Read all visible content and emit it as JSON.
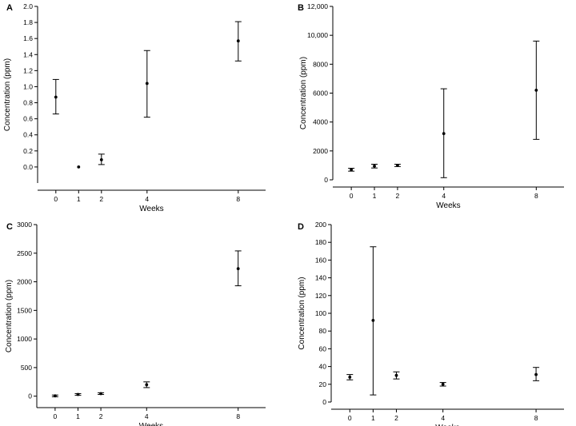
{
  "chart_data": [
    {
      "type": "scatter",
      "panel": "A",
      "xlabel": "Weeks",
      "ylabel": "Concentration (ppm)",
      "x_ticks": [
        0,
        1,
        2,
        4,
        8
      ],
      "y_ticks": [
        0.0,
        0.2,
        0.4,
        0.6,
        0.8,
        1.0,
        1.2,
        1.4,
        1.6,
        1.8,
        2.0
      ],
      "y_tick_labels": [
        "0.0",
        "0.2",
        "0.4",
        "0.6",
        "0.8",
        "1.0",
        "1.2",
        "1.4",
        "1.6",
        "1.8",
        "2.0"
      ],
      "xlim": [
        -0.8,
        9.2
      ],
      "ylim": [
        -0.2,
        2.0
      ],
      "points": [
        {
          "x": 0,
          "y": 0.87,
          "err_low": 0.66,
          "err_high": 1.09
        },
        {
          "x": 1,
          "y": 0.0,
          "err_low": 0.0,
          "err_high": 0.0
        },
        {
          "x": 2,
          "y": 0.09,
          "err_low": 0.03,
          "err_high": 0.16
        },
        {
          "x": 4,
          "y": 1.04,
          "err_low": 0.62,
          "err_high": 1.45
        },
        {
          "x": 8,
          "y": 1.57,
          "err_low": 1.32,
          "err_high": 1.81
        }
      ]
    },
    {
      "type": "scatter",
      "panel": "B",
      "xlabel": "Weeks",
      "ylabel": "Concentration (ppm)",
      "x_ticks": [
        0,
        1,
        2,
        4,
        8
      ],
      "y_ticks": [
        0,
        2000,
        4000,
        6000,
        8000,
        10000,
        12000
      ],
      "y_tick_labels": [
        "0",
        "2000",
        "4000",
        "6000",
        "8000",
        "10,000",
        "12,000"
      ],
      "xlim": [
        -0.8,
        9.2
      ],
      "ylim": [
        0,
        12000
      ],
      "points": [
        {
          "x": 0,
          "y": 700,
          "err_low": 600,
          "err_high": 800
        },
        {
          "x": 1,
          "y": 950,
          "err_low": 820,
          "err_high": 1080
        },
        {
          "x": 2,
          "y": 1000,
          "err_low": 920,
          "err_high": 1080
        },
        {
          "x": 4,
          "y": 3200,
          "err_low": 150,
          "err_high": 6300
        },
        {
          "x": 8,
          "y": 6200,
          "err_low": 2800,
          "err_high": 9600
        }
      ]
    },
    {
      "type": "scatter",
      "panel": "C",
      "xlabel": "Weeks",
      "ylabel": "Concentration (ppm)",
      "x_ticks": [
        0,
        1,
        2,
        4,
        8
      ],
      "y_ticks": [
        0,
        500,
        1000,
        1500,
        2000,
        2500,
        3000
      ],
      "y_tick_labels": [
        "0",
        "500",
        "1000",
        "1500",
        "2000",
        "2500",
        "3000"
      ],
      "xlim": [
        -0.8,
        9.2
      ],
      "ylim": [
        -200,
        3000
      ],
      "points": [
        {
          "x": 0,
          "y": 5,
          "err_low": -10,
          "err_high": 20
        },
        {
          "x": 1,
          "y": 30,
          "err_low": 15,
          "err_high": 45
        },
        {
          "x": 2,
          "y": 45,
          "err_low": 30,
          "err_high": 60
        },
        {
          "x": 4,
          "y": 200,
          "err_low": 150,
          "err_high": 250
        },
        {
          "x": 8,
          "y": 2230,
          "err_low": 1930,
          "err_high": 2540
        }
      ]
    },
    {
      "type": "scatter",
      "panel": "D",
      "xlabel": "Weeks",
      "ylabel": "Concentration (ppm)",
      "x_ticks": [
        0,
        1,
        2,
        4,
        8
      ],
      "y_ticks": [
        0,
        20,
        40,
        60,
        80,
        100,
        120,
        140,
        160,
        180,
        200
      ],
      "y_tick_labels": [
        "0",
        "20",
        "40",
        "60",
        "80",
        "100",
        "120",
        "140",
        "160",
        "180",
        "200"
      ],
      "xlim": [
        -0.8,
        9.2
      ],
      "ylim": [
        0,
        200
      ],
      "points": [
        {
          "x": 0,
          "y": 28,
          "err_low": 25,
          "err_high": 31
        },
        {
          "x": 1,
          "y": 92,
          "err_low": 8,
          "err_high": 175
        },
        {
          "x": 2,
          "y": 30,
          "err_low": 26,
          "err_high": 34
        },
        {
          "x": 4,
          "y": 20,
          "err_low": 18,
          "err_high": 22
        },
        {
          "x": 8,
          "y": 31,
          "err_low": 24,
          "err_high": 39
        }
      ]
    }
  ]
}
